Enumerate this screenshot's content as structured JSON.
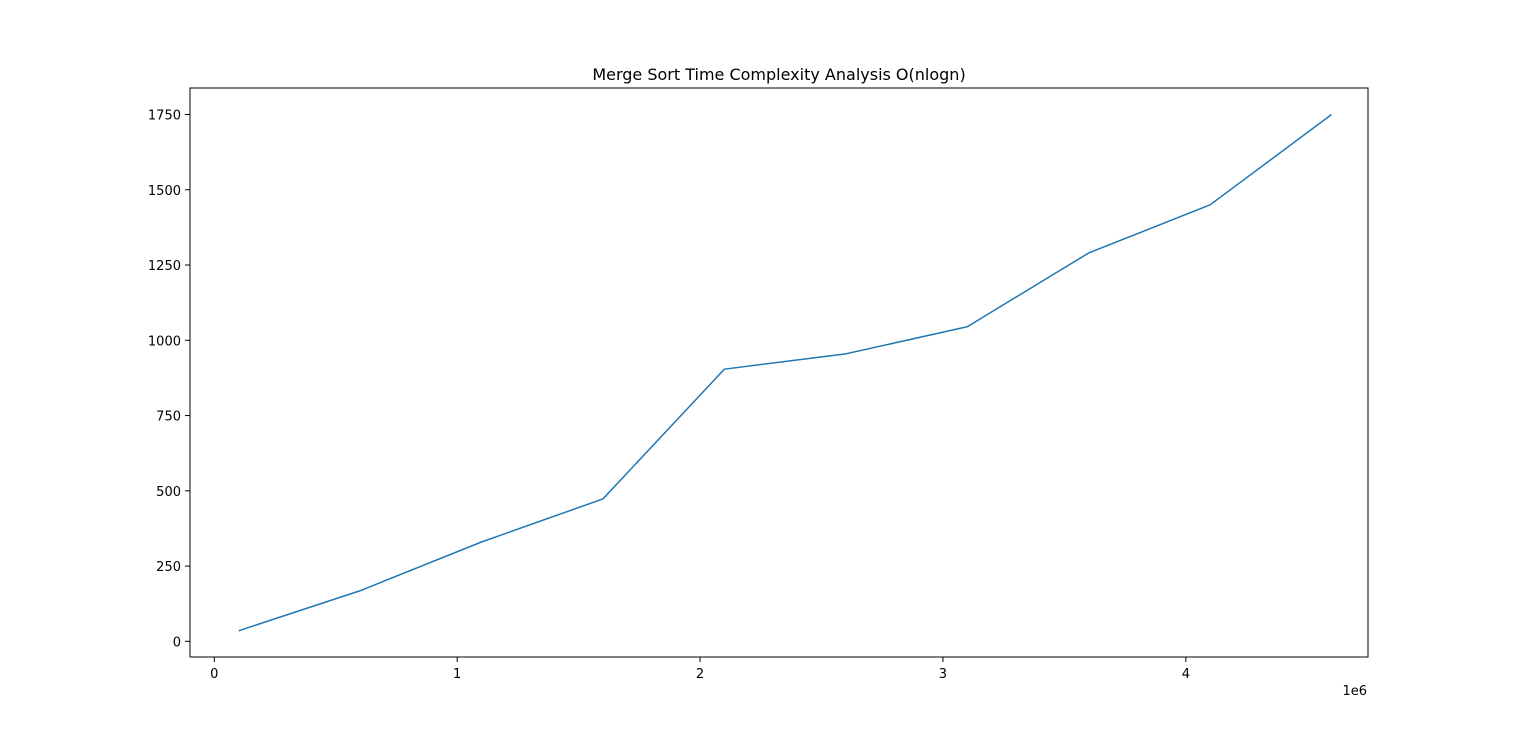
{
  "chart_data": {
    "type": "line",
    "title": "Merge Sort Time Complexity Analysis O(nlogn)",
    "xlabel": "",
    "ylabel": "",
    "x_offset_label": "1e6",
    "x_scale": 1000000,
    "xlim": [
      -100000,
      4750000
    ],
    "ylim": [
      -52,
      1838
    ],
    "x_ticks": [
      {
        "value": 0,
        "label": "0"
      },
      {
        "value": 1000000,
        "label": "1"
      },
      {
        "value": 2000000,
        "label": "2"
      },
      {
        "value": 3000000,
        "label": "3"
      },
      {
        "value": 4000000,
        "label": "4"
      }
    ],
    "y_ticks": [
      {
        "value": 0,
        "label": "0"
      },
      {
        "value": 250,
        "label": "250"
      },
      {
        "value": 500,
        "label": "500"
      },
      {
        "value": 750,
        "label": "750"
      },
      {
        "value": 1000,
        "label": "1000"
      },
      {
        "value": 1250,
        "label": "1250"
      },
      {
        "value": 1500,
        "label": "1500"
      },
      {
        "value": 1750,
        "label": "1750"
      }
    ],
    "grid": false,
    "series": [
      {
        "color": "#1f77b4",
        "x": [
          100000,
          600000,
          1100000,
          1600000,
          2100000,
          2600000,
          3100000,
          3600000,
          4100000,
          4600000
        ],
        "y": [
          35,
          168,
          330,
          473,
          904,
          955,
          1045,
          1290,
          1450,
          1750
        ]
      }
    ]
  }
}
